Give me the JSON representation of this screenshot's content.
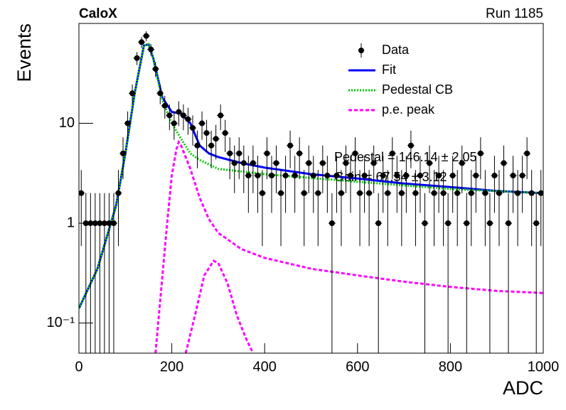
{
  "chart_data": {
    "type": "histogram-fit",
    "title": "CaloX",
    "subtitle": "Run 1185",
    "x_label": "ADC",
    "y_label": "Events",
    "log_y": true,
    "xlim": [
      0,
      1000
    ],
    "ylim": [
      0.05,
      100
    ],
    "xticks": [
      0,
      200,
      400,
      600,
      800,
      1000
    ],
    "yticks": [
      {
        "value": 0.1,
        "label": "10⁻¹"
      },
      1,
      10
    ],
    "legend": "top-right",
    "annotations": [
      "Pedestal = 146.14 ± 2.05",
      "Gain = 67.54 ± 3.12"
    ],
    "series": [
      {
        "name": "Data",
        "kind": "points",
        "color": "#000000",
        "x": [
          5,
          15,
          25,
          35,
          45,
          55,
          65,
          75,
          85,
          95,
          105,
          115,
          125,
          135,
          145,
          155,
          165,
          175,
          185,
          195,
          205,
          215,
          225,
          235,
          245,
          255,
          265,
          275,
          285,
          295,
          305,
          315,
          325,
          335,
          345,
          355,
          365,
          375,
          385,
          395,
          405,
          415,
          425,
          435,
          445,
          455,
          465,
          475,
          485,
          495,
          505,
          515,
          525,
          535,
          545,
          555,
          565,
          575,
          585,
          595,
          605,
          615,
          625,
          635,
          645,
          655,
          665,
          675,
          685,
          695,
          705,
          715,
          725,
          735,
          745,
          755,
          765,
          775,
          785,
          795,
          805,
          815,
          825,
          835,
          845,
          855,
          865,
          875,
          885,
          895,
          905,
          915,
          925,
          935,
          945,
          955,
          965,
          975,
          985,
          995
        ],
        "values": [
          2,
          1,
          1,
          1,
          1,
          1,
          1,
          1,
          2,
          5,
          10,
          20,
          45,
          65,
          75,
          55,
          35,
          20,
          15,
          12,
          10,
          13,
          12,
          11,
          9,
          6,
          10,
          8,
          6,
          7,
          12,
          8,
          5,
          4,
          5,
          4,
          3,
          4,
          3,
          2,
          5,
          3,
          4,
          2,
          3,
          6,
          3,
          5,
          2,
          4,
          3,
          2,
          4,
          3,
          1,
          3,
          2,
          4,
          3,
          5,
          2,
          3,
          2,
          4,
          1,
          3,
          2,
          5,
          3,
          2,
          3,
          6,
          2,
          3,
          1,
          4,
          2,
          3,
          2,
          1,
          3,
          2,
          4,
          1,
          2,
          3,
          5,
          2,
          1,
          3,
          2,
          4,
          1,
          3,
          2,
          3,
          5,
          2,
          1,
          2
        ],
        "errors": [
          1.41,
          1,
          1,
          1,
          1,
          1,
          1,
          1,
          1.41,
          2.24,
          3.16,
          4.47,
          6.71,
          8.06,
          8.66,
          7.42,
          5.92,
          4.47,
          3.87,
          3.46,
          3.16,
          3.61,
          3.46,
          3.32,
          3,
          2.45,
          3.16,
          2.83,
          2.45,
          2.65,
          3.46,
          2.83,
          2.24,
          2,
          2.24,
          2,
          1.73,
          2,
          1.73,
          1.41,
          2.24,
          1.73,
          2,
          1.41,
          1.73,
          2.45,
          1.73,
          2.24,
          1.41,
          2,
          1.73,
          1.41,
          2,
          1.73,
          1,
          1.73,
          1.41,
          2,
          1.73,
          2.24,
          1.41,
          1.73,
          1.41,
          2,
          1,
          1.73,
          1.41,
          2.24,
          1.73,
          1.41,
          1.73,
          2.45,
          1.41,
          1.73,
          1,
          2,
          1.41,
          1.73,
          1.41,
          1,
          1.73,
          1.41,
          2,
          1,
          1.41,
          1.73,
          2.24,
          1.41,
          1,
          1.73,
          1.41,
          2,
          1,
          1.73,
          1.41,
          1.73,
          2.24,
          1.41,
          1,
          1.41
        ]
      },
      {
        "name": "Fit",
        "kind": "line",
        "color": "#0000ff",
        "x": [
          0,
          40,
          80,
          100,
          120,
          140,
          150,
          160,
          180,
          200,
          220,
          240,
          260,
          280,
          300,
          350,
          400,
          500,
          600,
          700,
          800,
          900,
          1000
        ],
        "values": [
          0.14,
          0.35,
          1.5,
          5,
          20,
          60,
          62,
          45,
          18,
          13,
          12.5,
          10,
          6,
          5,
          4.6,
          4,
          3.6,
          3.1,
          2.8,
          2.5,
          2.3,
          2.1,
          2
        ]
      },
      {
        "name": "Pedestal CB",
        "kind": "dotted",
        "color": "#00cc00",
        "x": [
          0,
          40,
          80,
          100,
          120,
          140,
          150,
          160,
          180,
          200,
          220,
          240,
          260,
          300,
          400,
          600,
          800,
          1000
        ],
        "values": [
          0.14,
          0.35,
          1.5,
          5,
          20,
          60,
          62,
          45,
          17,
          10,
          7,
          5,
          4.3,
          3.5,
          3.1,
          2.6,
          2.2,
          2
        ]
      },
      {
        "name": "p.e. peak",
        "kind": "dashed",
        "color": "#ff00ff",
        "x": [
          165,
          180,
          190,
          200,
          210,
          215,
          220,
          240,
          260,
          280,
          300,
          350,
          400,
          500,
          600,
          700,
          800,
          900,
          1000,
          1000,
          230,
          250,
          270,
          290,
          300,
          320,
          340,
          360,
          375
        ],
        "values": [
          0.05,
          0.3,
          1,
          3,
          5.5,
          6.5,
          6,
          3.5,
          1.8,
          1.1,
          0.8,
          0.55,
          0.45,
          0.35,
          0.3,
          0.26,
          0.23,
          0.21,
          0.2,
          null,
          0.05,
          0.12,
          0.3,
          0.42,
          0.4,
          0.25,
          0.12,
          0.07,
          0.05
        ]
      }
    ]
  }
}
